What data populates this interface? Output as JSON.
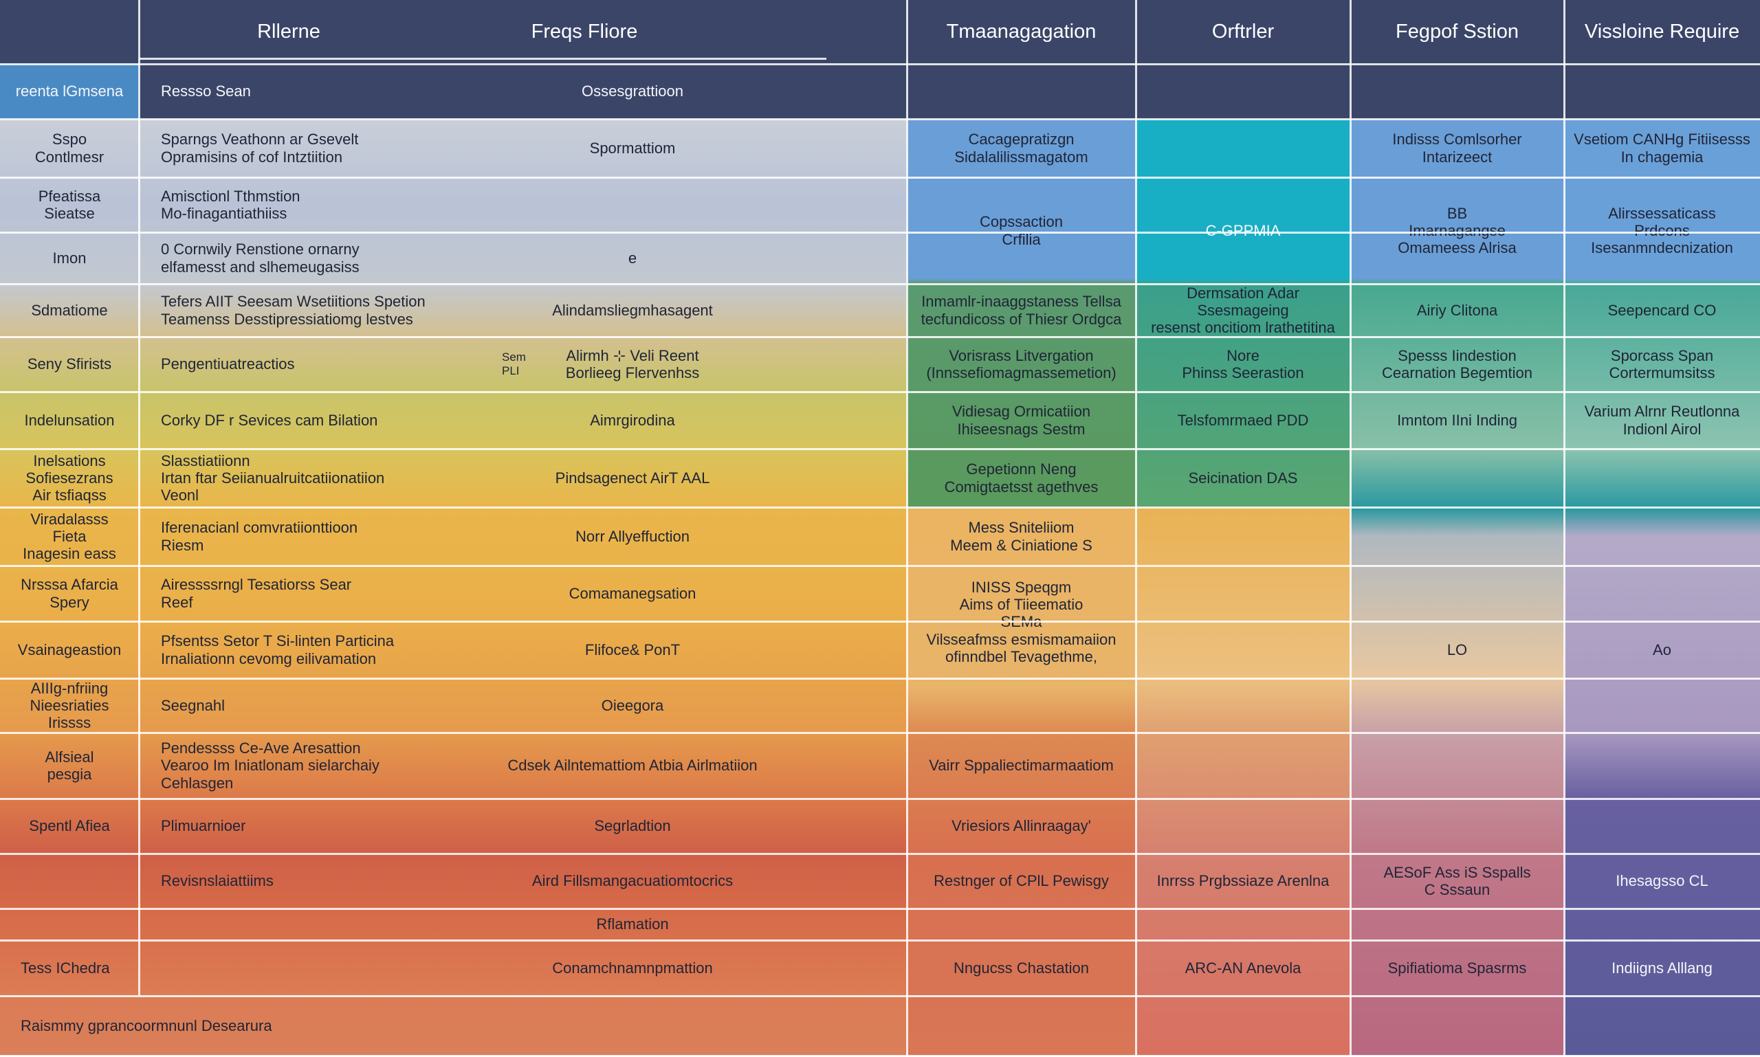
{
  "header": [
    "Rllerne",
    "Freqs Fliore",
    "Tmaanagagation",
    "Orftrler",
    "Fegpof Sstion",
    "Vissloine Require"
  ],
  "rows": [
    {
      "label": "reenta lGmsena",
      "text": "Ressso Sean",
      "middle": "Ossesgrattioon"
    },
    {
      "label": "Sspo\nContlmesr",
      "text": "Sparngs   Veathonn ar Gsevelt\nOpramisins of cof Intztiition",
      "middle": "Spormattiom",
      "management": "Cacagepratizgn\nSidalalilissmagatom",
      "session": "Indisss Comlsorher\nIntarizeect",
      "require": "Vsetiom CANHg Fitiisesss\nIn chagemia"
    },
    {
      "label": "Pfeatissa\nSieatse",
      "text": "Amisctionl Tthmstion\nMo-finagantiathiiss",
      "management": "Copssaction\nCrfilia",
      "other": "C-GPPMIA",
      "session": "BB\nImarnagangse\nOmameess Alrisa",
      "require": "Alirssessaticass\nPrdcons\nIsesanmndecnization"
    },
    {
      "label": "Imon",
      "text": "0 Cornwily Renstione ornarny\nelfamesst and slhemeugasiss",
      "middle": "e"
    },
    {
      "label": "Sdmatiome",
      "text": "Tefers AIIT Seesam Wsetiitions Spetion\nTeamenss Desstipressiatiomg lestves",
      "middle": "Alindamsliegmhasagent",
      "management": "Inmamlr-inaaggstaness Tellsa\ntecfundicoss of Thiesr Ordgca",
      "other": "Dermsation Adar Ssesmageing\nresenst oncitiom lrathetitina",
      "session": "Airiy Clitona",
      "require": "Seepencard CO"
    },
    {
      "label": "Seny Sfirists",
      "text": "Pengentiuatreactios",
      "tag": "Sem\nPLI",
      "middle": "Alirmh  ⊹ Veli Reent\nBorlieeg      Flervenhss",
      "management": "Vorisrass Litvergation\n(Innssefiomagmassemetion)",
      "other": "Nore\nPhinss Seerastion",
      "session": "Spesss Iindestion\nCearnation Begemtion",
      "require": "Sporcass Span\nCortermumsitss"
    },
    {
      "label": "Indelunsation",
      "text": "Corky DF r Sevices cam Bilation",
      "middle": "Aimrgirodina",
      "management": "Vidiesag Ormicatiion\nIhiseesnags Sestm",
      "other": "Telsfomrmaed PDD",
      "session": "Imntom IIni Inding",
      "require": "Varium Alrnr Reutlonna\nIndionl Airol"
    },
    {
      "label": "Inelsations\nSofiesezrans\nAir tsfiaqss",
      "text": "Slasstiatiionn\nIrtan ftar Seiianualruitcatiionatiion\nVeonl",
      "middle": "Pindsagenect AirT AAL",
      "management": "Gepetionn Neng\nComigtaetsst agethves",
      "other": "Seicination DAS"
    },
    {
      "label": "Viradalasss\nFieta\nInagesin eass",
      "text": "Iferenacianl comvratiionttioon\nRiesm",
      "middle": "Norr Allyeffuction",
      "management": "Mess Sniteliiom\nMeem & Ciniatione S"
    },
    {
      "label": "Nrsssa Afarcia\nSpery",
      "text": "Airessssrngl Tesatiorss Sear\nReef",
      "middle": "Comamanegsation",
      "management": "INISS Speqgm\nAims of Tiieematio\nSEMa\nVilsseafmss esmismamaiion\nofinndbel Tevagethme,"
    },
    {
      "label": "Vsainageastion",
      "text": "Pfsentss Setor T Si-linten Particina\nIrnaliationn cevomg eilivamation",
      "middle": "Flifoce& PonT",
      "session": "LO",
      "require": "Ao"
    },
    {
      "label": "AIIIg-nfriing\nNieesriaties\nIrissss",
      "text": "Seegnahl",
      "middle": "Oieegora"
    },
    {
      "label": "Alfsieal\npesgia",
      "text": "Pendessss Ce-Ave Aresattion\nVearoo Im Iniatlonam sielarchaiy\nCehlasgen",
      "middle": "Cdsek Ailntemattiom Atbia Airlmatiion",
      "management": "Vairr Sppaliectimarmaatiom"
    },
    {
      "label": "Spentl Afiea",
      "text": "Plimuarnioer",
      "middle": "Segrladtion",
      "management": "Vriesiors Allinraagay'"
    },
    {
      "text": "Revisnslaiattiims",
      "middle": "Aird Fillsmangacuatiomtocrics",
      "management": "Restnger of CPlL Pewisgy",
      "other": "Inrrss   Prgbssiaze   Arenlna",
      "session": "AESoF Ass iS Sspalls\nC Sssaun",
      "require": "Ihesagsso CL"
    },
    {
      "middle": "Rflamation"
    },
    {
      "label": "Tess IChedra",
      "middle": "Conamchnamnpmattion",
      "management": "Nngucss Chastation",
      "other": "ARC-AN Anevola",
      "session": "Spifiatioma Spasrms",
      "require": "Indiigns Alllang"
    },
    {
      "label": "Raismmy gprancoormnunl Desearura"
    }
  ]
}
